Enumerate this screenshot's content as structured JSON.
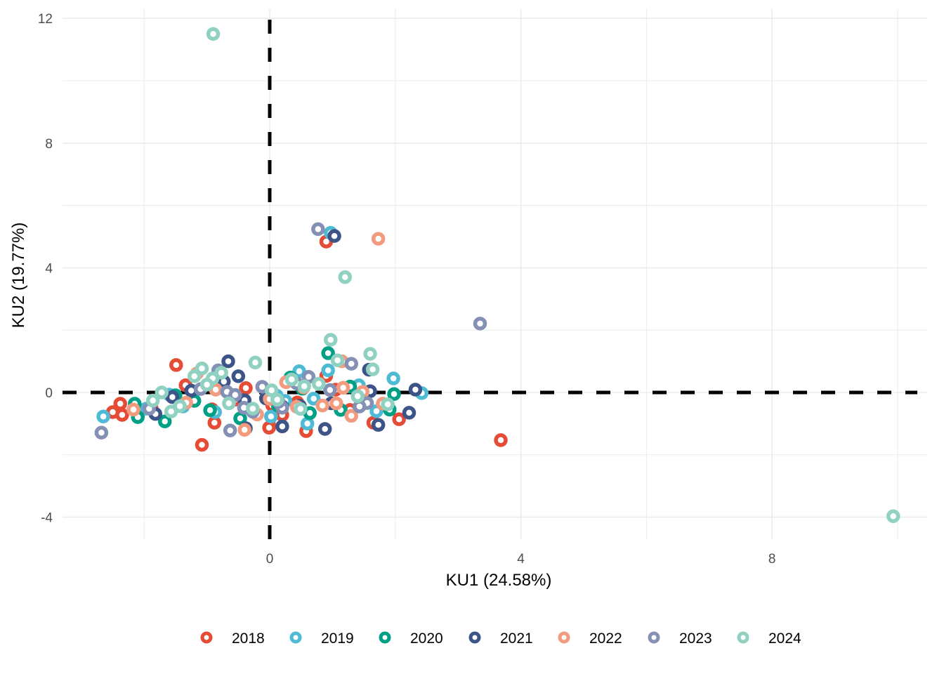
{
  "chart_data": {
    "type": "scatter",
    "title": "",
    "xlabel": "KU1 (24.58%)",
    "ylabel": "KU2 (19.77%)",
    "xlim": [
      -3.3,
      10.4
    ],
    "ylim": [
      -4.7,
      12.3
    ],
    "x_ticks": [
      0,
      4,
      8
    ],
    "x_tick_labels": [
      "0",
      "4",
      "8"
    ],
    "x_minor_grid": [
      -2,
      2,
      6,
      10
    ],
    "y_ticks": [
      -4,
      0,
      4,
      8,
      12
    ],
    "y_tick_labels": [
      "-4",
      "0",
      "4",
      "8",
      "12"
    ],
    "y_minor_grid": [
      -2,
      2,
      6,
      10
    ],
    "grid": true,
    "reference_lines": [
      {
        "orientation": "vertical",
        "value": 0,
        "style": "dashed",
        "color": "#000000"
      },
      {
        "orientation": "horizontal",
        "value": 0,
        "style": "dashed",
        "color": "#000000"
      }
    ],
    "legend": {
      "position": "bottom",
      "title": ""
    },
    "series": [
      {
        "name": "2018",
        "color": "#E64B35",
        "points": [
          [
            -1.49,
            0.88
          ],
          [
            -2.38,
            -0.36
          ],
          [
            -2.5,
            -0.63
          ],
          [
            -2.35,
            -0.72
          ],
          [
            -1.88,
            -0.51
          ],
          [
            -1.08,
            -1.68
          ],
          [
            -1.34,
            0.23
          ],
          [
            -0.92,
            -0.54
          ],
          [
            -0.88,
            -0.97
          ],
          [
            -0.38,
            0.14
          ],
          [
            -0.01,
            -1.13
          ],
          [
            0.14,
            -0.96
          ],
          [
            0.2,
            -0.72
          ],
          [
            0.58,
            -1.24
          ],
          [
            0.9,
            4.84
          ],
          [
            1.05,
            0.09
          ],
          [
            1.65,
            -0.97
          ],
          [
            2.06,
            -0.86
          ],
          [
            3.68,
            -1.53
          ],
          [
            0.44,
            -0.32
          ],
          [
            -0.55,
            -0.23
          ],
          [
            1.28,
            -0.56
          ],
          [
            0.9,
            0.53
          ],
          [
            0.04,
            -0.41
          ]
        ]
      },
      {
        "name": "2019",
        "color": "#4DBBD5",
        "points": [
          [
            -2.65,
            -0.77
          ],
          [
            -1.97,
            -0.52
          ],
          [
            -1.6,
            -0.07
          ],
          [
            -1.38,
            -0.45
          ],
          [
            -0.87,
            -0.63
          ],
          [
            0.02,
            -0.77
          ],
          [
            0.11,
            -0.1
          ],
          [
            0.47,
            0.68
          ],
          [
            0.6,
            -1.0
          ],
          [
            0.93,
            0.71
          ],
          [
            0.97,
            5.12
          ],
          [
            1.42,
            0.23
          ],
          [
            1.97,
            0.45
          ],
          [
            2.42,
            -0.02
          ],
          [
            0.25,
            -0.27
          ],
          [
            -0.8,
            0.27
          ],
          [
            1.7,
            -0.6
          ],
          [
            0.7,
            -0.2
          ]
        ]
      },
      {
        "name": "2020",
        "color": "#00A087",
        "points": [
          [
            -2.15,
            -0.36
          ],
          [
            -2.1,
            -0.79
          ],
          [
            -1.67,
            -0.93
          ],
          [
            -1.5,
            -0.09
          ],
          [
            -1.2,
            -0.27
          ],
          [
            -0.95,
            -0.57
          ],
          [
            -0.81,
            0.3
          ],
          [
            -0.47,
            -0.83
          ],
          [
            0.93,
            1.26
          ],
          [
            1.13,
            -0.56
          ],
          [
            1.98,
            -0.05
          ],
          [
            1.91,
            -0.55
          ],
          [
            0.13,
            -0.42
          ],
          [
            0.52,
            0.12
          ],
          [
            0.64,
            -0.66
          ],
          [
            -0.03,
            -0.09
          ],
          [
            1.28,
            0.19
          ],
          [
            0.33,
            0.48
          ]
        ]
      },
      {
        "name": "2021",
        "color": "#3C5488",
        "points": [
          [
            -1.82,
            -0.69
          ],
          [
            -1.55,
            -0.15
          ],
          [
            -0.66,
            1.0
          ],
          [
            -0.73,
            0.35
          ],
          [
            -0.5,
            0.52
          ],
          [
            -0.38,
            -1.15
          ],
          [
            -0.06,
            -0.19
          ],
          [
            0.2,
            -1.09
          ],
          [
            0.88,
            -1.17
          ],
          [
            1.03,
            5.02
          ],
          [
            1.6,
            0.04
          ],
          [
            1.58,
            0.73
          ],
          [
            1.73,
            -1.04
          ],
          [
            2.22,
            -0.65
          ],
          [
            2.32,
            0.09
          ],
          [
            0.48,
            -0.43
          ],
          [
            -0.4,
            -0.25
          ],
          [
            0.98,
            -0.35
          ],
          [
            -1.25,
            0.06
          ],
          [
            0.2,
            -0.45
          ]
        ]
      },
      {
        "name": "2022",
        "color": "#F39B7F",
        "points": [
          [
            -2.17,
            -0.55
          ],
          [
            -1.16,
            0.61
          ],
          [
            -0.86,
            0.09
          ],
          [
            -0.4,
            -1.2
          ],
          [
            -0.2,
            -0.71
          ],
          [
            0.43,
            -0.46
          ],
          [
            0.54,
            0.16
          ],
          [
            0.84,
            -0.42
          ],
          [
            1.06,
            -0.35
          ],
          [
            1.15,
            1.0
          ],
          [
            1.3,
            -0.75
          ],
          [
            1.48,
            0.02
          ],
          [
            1.73,
            4.93
          ],
          [
            1.8,
            -0.36
          ],
          [
            0.0,
            -0.21
          ],
          [
            0.26,
            0.33
          ],
          [
            1.17,
            0.15
          ],
          [
            -1.33,
            -0.33
          ]
        ]
      },
      {
        "name": "2023",
        "color": "#8491B4",
        "points": [
          [
            -2.68,
            -1.29
          ],
          [
            -1.92,
            -0.52
          ],
          [
            -1.1,
            0.11
          ],
          [
            -0.82,
            0.71
          ],
          [
            -0.68,
            0.02
          ],
          [
            -0.63,
            -1.22
          ],
          [
            -0.41,
            -0.49
          ],
          [
            -0.27,
            -0.62
          ],
          [
            -0.12,
            0.18
          ],
          [
            0.2,
            -0.49
          ],
          [
            0.43,
            0.29
          ],
          [
            0.62,
            0.5
          ],
          [
            0.77,
            5.24
          ],
          [
            1.3,
            0.92
          ],
          [
            1.55,
            -0.34
          ],
          [
            1.43,
            -0.45
          ],
          [
            3.35,
            2.21
          ],
          [
            0.96,
            0.08
          ],
          [
            0.14,
            -0.3
          ],
          [
            -0.55,
            -0.08
          ]
        ]
      },
      {
        "name": "2024",
        "color": "#91D1C2",
        "points": [
          [
            -0.9,
            11.5
          ],
          [
            1.2,
            3.7
          ],
          [
            -1.86,
            -0.26
          ],
          [
            -1.72,
            0.0
          ],
          [
            -1.57,
            -0.61
          ],
          [
            -1.2,
            0.52
          ],
          [
            -1.08,
            0.77
          ],
          [
            -0.91,
            0.45
          ],
          [
            -0.77,
            0.63
          ],
          [
            -0.65,
            -0.35
          ],
          [
            -0.27,
            -0.52
          ],
          [
            -0.23,
            0.96
          ],
          [
            0.03,
            0.07
          ],
          [
            0.35,
            0.42
          ],
          [
            0.49,
            -0.53
          ],
          [
            0.97,
            1.69
          ],
          [
            1.08,
            1.03
          ],
          [
            1.6,
            1.24
          ],
          [
            1.64,
            0.74
          ],
          [
            1.88,
            -0.38
          ],
          [
            0.78,
            0.28
          ],
          [
            0.12,
            -0.23
          ],
          [
            -1.43,
            -0.44
          ],
          [
            9.93,
            -3.97
          ],
          [
            1.4,
            -0.12
          ],
          [
            -1.0,
            0.25
          ],
          [
            0.55,
            0.2
          ]
        ]
      }
    ]
  }
}
